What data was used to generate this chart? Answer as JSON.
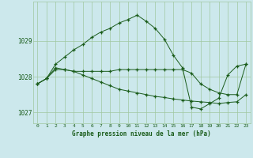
{
  "title": "Graphe pression niveau de la mer (hPa)",
  "bg_color": "#cce8ec",
  "plot_bg_color": "#cce8ec",
  "outer_bg_color": "#cce8ec",
  "line_color": "#1a5c1a",
  "grid_color": "#a0c8a0",
  "text_color": "#1a5c1a",
  "ylim": [
    1026.7,
    1030.1
  ],
  "xlim": [
    -0.5,
    23.5
  ],
  "yticks": [
    1027,
    1028,
    1029
  ],
  "xticks": [
    0,
    1,
    2,
    3,
    4,
    5,
    6,
    7,
    8,
    9,
    10,
    11,
    12,
    13,
    14,
    15,
    16,
    17,
    18,
    19,
    20,
    21,
    22,
    23
  ],
  "series1_x": [
    0,
    1,
    2,
    3,
    4,
    5,
    6,
    7,
    8,
    9,
    10,
    11,
    12,
    13,
    14,
    15,
    16,
    17,
    18,
    19,
    20,
    21,
    22,
    23
  ],
  "series1_y": [
    1027.8,
    1027.95,
    1028.35,
    1028.55,
    1028.75,
    1028.9,
    1029.1,
    1029.25,
    1029.35,
    1029.5,
    1029.6,
    1029.72,
    1029.55,
    1029.35,
    1029.05,
    1028.6,
    1028.25,
    1027.15,
    1027.1,
    1027.25,
    1027.4,
    1028.05,
    1028.3,
    1028.35
  ],
  "series2_x": [
    0,
    1,
    2,
    3,
    4,
    5,
    6,
    7,
    8,
    9,
    10,
    11,
    12,
    13,
    14,
    15,
    16,
    17,
    18,
    19,
    20,
    21,
    22,
    23
  ],
  "series2_y": [
    1027.8,
    1027.95,
    1028.2,
    1028.2,
    1028.15,
    1028.15,
    1028.15,
    1028.15,
    1028.15,
    1028.2,
    1028.2,
    1028.2,
    1028.2,
    1028.2,
    1028.2,
    1028.2,
    1028.2,
    1028.1,
    1027.8,
    1027.65,
    1027.55,
    1027.5,
    1027.5,
    1028.35
  ],
  "series3_x": [
    0,
    1,
    2,
    3,
    4,
    5,
    6,
    7,
    8,
    9,
    10,
    11,
    12,
    13,
    14,
    15,
    16,
    17,
    18,
    19,
    20,
    21,
    22,
    23
  ],
  "series3_y": [
    1027.8,
    1027.95,
    1028.25,
    1028.2,
    1028.15,
    1028.05,
    1027.95,
    1027.85,
    1027.75,
    1027.65,
    1027.6,
    1027.55,
    1027.5,
    1027.45,
    1027.42,
    1027.38,
    1027.35,
    1027.32,
    1027.3,
    1027.28,
    1027.25,
    1027.28,
    1027.3,
    1027.5
  ]
}
